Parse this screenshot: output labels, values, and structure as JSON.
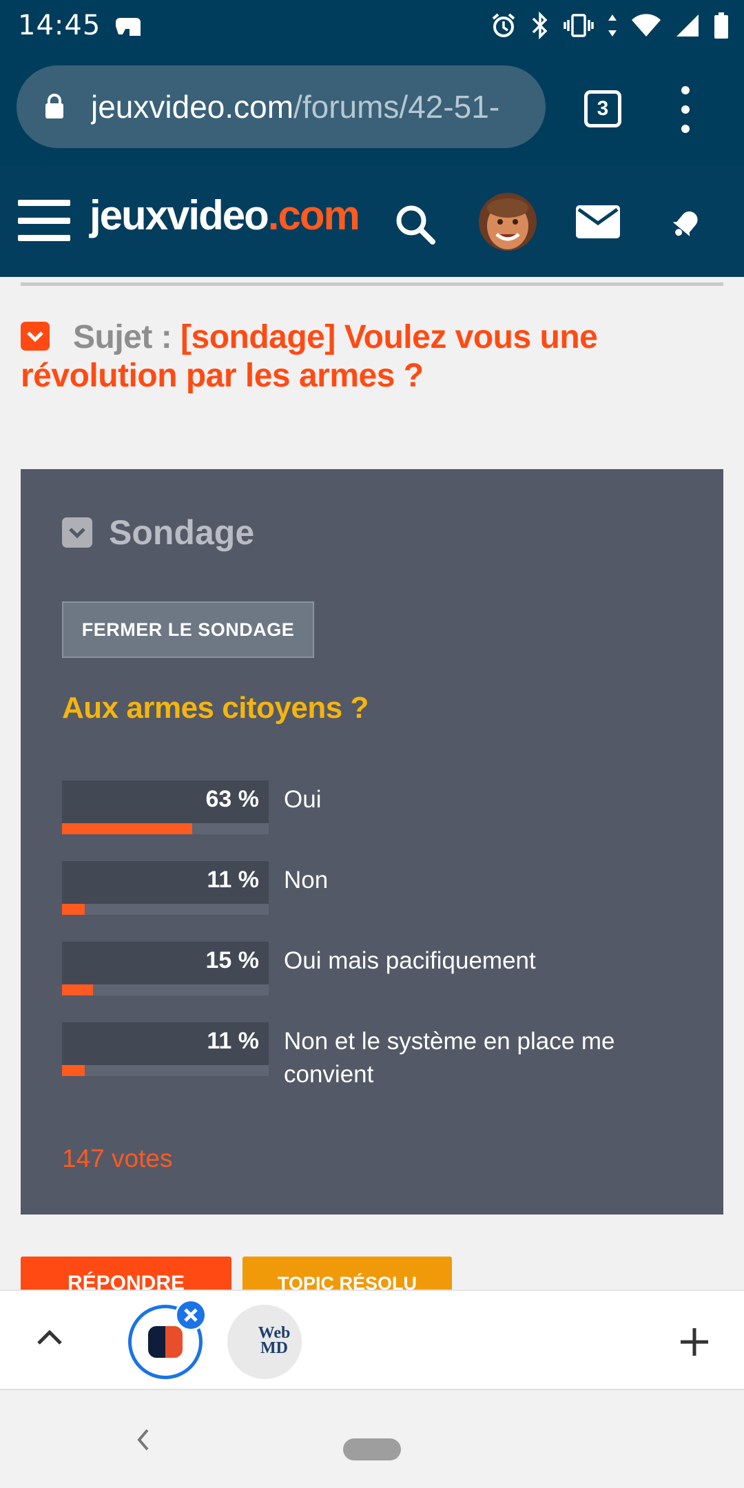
{
  "status_bar": {
    "time": "14:45",
    "icons": [
      "game-controller-icon",
      "alarm-icon",
      "bluetooth-icon",
      "vibrate-icon",
      "data-arrows-icon",
      "wifi-icon",
      "cell-signal-icon",
      "battery-icon"
    ]
  },
  "browser": {
    "url_host": "jeuxvideo.com",
    "url_path": "/forums/42-51-",
    "tab_count": "3"
  },
  "site_header": {
    "logo_part1": "jeuxvideo",
    "logo_part2": ".com",
    "accent_color": "#ff5a1f",
    "header_bg": "#033e5e"
  },
  "topic": {
    "label": "Sujet : ",
    "title": "[sondage] Voulez vous une révolution par les armes ?"
  },
  "poll": {
    "heading": "Sondage",
    "close_button": "FERMER LE SONDAGE",
    "question": "Aux armes citoyens ?",
    "options": [
      {
        "percent_text": "63 %",
        "percent": 63,
        "label": "Oui"
      },
      {
        "percent_text": "11 %",
        "percent": 11,
        "label": "Non"
      },
      {
        "percent_text": "15 %",
        "percent": 15,
        "label": "Oui mais pacifiquement"
      },
      {
        "percent_text": "11 %",
        "percent": 11,
        "label": "Non et le système en place me convient"
      }
    ],
    "votes": "147 votes"
  },
  "actions": {
    "reply": "RÉPONDRE",
    "resolved": "TOPIC RÉSOLU"
  },
  "tab_strip": {
    "tab2_label": "Web MD"
  }
}
